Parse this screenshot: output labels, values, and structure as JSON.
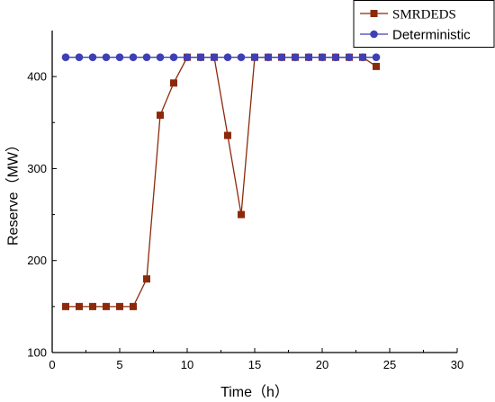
{
  "chart_data": {
    "type": "line",
    "xlabel": "Time（h）",
    "ylabel": "Reserve（MW）",
    "xlim": [
      0,
      30
    ],
    "ylim": [
      100,
      450
    ],
    "xticks": [
      0,
      5,
      10,
      15,
      20,
      25,
      30
    ],
    "yticks": [
      100,
      200,
      300,
      400
    ],
    "grid": false,
    "legend_position": "top-right",
    "series": [
      {
        "name": "SMRDEDS",
        "color": "#8b2a0a",
        "marker_color": "#8b2a0a",
        "marker": "square",
        "x": [
          1,
          2,
          3,
          4,
          5,
          6,
          7,
          8,
          9,
          10,
          11,
          12,
          13,
          14,
          15,
          16,
          17,
          18,
          19,
          20,
          21,
          22,
          23,
          24
        ],
        "y": [
          150,
          150,
          150,
          150,
          150,
          150,
          180,
          358,
          393,
          421,
          421,
          421,
          336,
          250,
          421,
          421,
          421,
          421,
          421,
          421,
          421,
          421,
          421,
          411
        ]
      },
      {
        "name": "Deterministic",
        "color": "#3f3fb5",
        "marker_color": "#3f3fb5",
        "marker": "circle",
        "x": [
          1,
          2,
          3,
          4,
          5,
          6,
          7,
          8,
          9,
          10,
          11,
          12,
          13,
          14,
          15,
          16,
          17,
          18,
          19,
          20,
          21,
          22,
          23,
          24
        ],
        "y": [
          421,
          421,
          421,
          421,
          421,
          421,
          421,
          421,
          421,
          421,
          421,
          421,
          421,
          421,
          421,
          421,
          421,
          421,
          421,
          421,
          421,
          421,
          421,
          421
        ]
      }
    ]
  }
}
